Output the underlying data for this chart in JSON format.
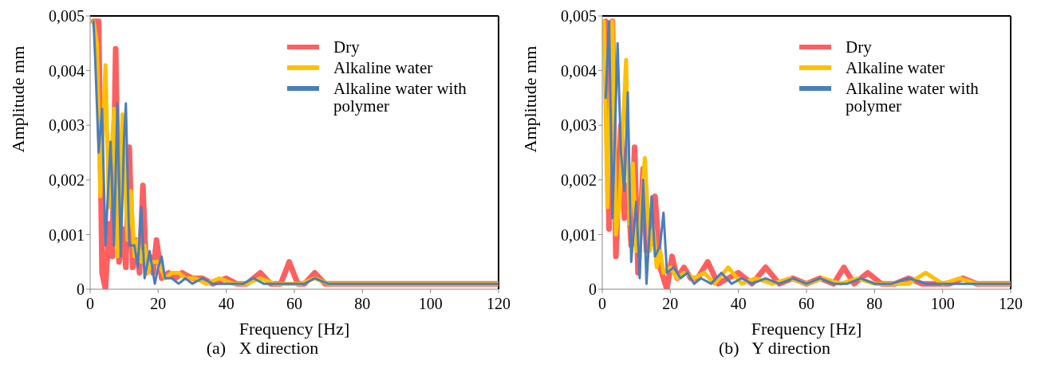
{
  "chart_data": [
    {
      "type": "line",
      "title": "(a)   X direction",
      "xlabel": "Frequency [Hz]",
      "ylabel": "Amplitude mm",
      "xlim": [
        0,
        120
      ],
      "xticks": [
        0,
        20,
        40,
        60,
        80,
        100,
        120
      ],
      "ylim": [
        0,
        0.005
      ],
      "yticks": [
        {
          "value": 0,
          "label": "0"
        },
        {
          "value": 0.001,
          "label": "0,001"
        },
        {
          "value": 0.002,
          "label": "0,002"
        },
        {
          "value": 0.003,
          "label": "0,003"
        },
        {
          "value": 0.004,
          "label": "0,004"
        },
        {
          "value": 0.005,
          "label": "0,005"
        }
      ],
      "grid": false,
      "legend": "top right",
      "marker": "none",
      "line_style": "solid",
      "series": [
        {
          "name": "Dry",
          "color": "#ff5f5f",
          "x": [
            1,
            2.5,
            3.5,
            4.5,
            5.5,
            6.5,
            7.5,
            8.5,
            9.5,
            10.5,
            11.5,
            12.5,
            13.5,
            14.5,
            15.5,
            16.5,
            17.5,
            18.5,
            19.5,
            21,
            23,
            25,
            27,
            30,
            33,
            36,
            40,
            43,
            46,
            50,
            53,
            56,
            58.5,
            61,
            63,
            66,
            69,
            72,
            76,
            80,
            84,
            88,
            90,
            94,
            98,
            100,
            104,
            108,
            112,
            116,
            120
          ],
          "values": [
            0.0049,
            0.0049,
            0.0003,
            0,
            0.0012,
            0.0006,
            0.0044,
            0.0005,
            0.0011,
            0.0004,
            0.0026,
            0.0004,
            0.0009,
            0.0003,
            0.0019,
            0.0003,
            0.0006,
            0.0003,
            0.0009,
            0.0002,
            0.0003,
            0.0002,
            0.0003,
            0.0002,
            0.0002,
            0.0001,
            0.0002,
            0.0001,
            0.0001,
            0.0003,
            0.0001,
            0.0001,
            0.0005,
            0.0001,
            0.0001,
            0.0003,
            0.0001,
            0.0001,
            0.0001,
            0.0001,
            0.0001,
            0.0001,
            0.0001,
            0.0001,
            0.0001,
            0.0001,
            0.0001,
            0.0001,
            0.0001,
            0.0001,
            0.0001
          ]
        },
        {
          "name": "Alkaline water",
          "color": "#ffc000",
          "x": [
            1,
            2,
            3,
            4.5,
            5.5,
            7,
            8,
            9.5,
            11,
            12,
            13,
            14,
            15,
            16,
            17,
            18,
            20,
            22,
            24,
            26,
            28,
            31,
            34,
            38,
            42,
            46,
            50,
            54,
            58,
            62,
            66,
            70,
            75,
            80,
            85,
            90,
            95,
            100,
            105,
            110,
            115,
            120
          ],
          "values": [
            0.0049,
            0.0045,
            0.0017,
            0.0041,
            0.0015,
            0.0033,
            0.0006,
            0.0032,
            0.0009,
            0.0018,
            0.0006,
            0.0009,
            0.0005,
            0.0008,
            0.0003,
            0.0005,
            0.0005,
            0.0002,
            0.0003,
            0.0003,
            0.0002,
            0.0002,
            0.0001,
            0.0002,
            0.0001,
            0.0001,
            0.0002,
            0.0001,
            0.0001,
            0.0001,
            0.0002,
            0.0001,
            0.0001,
            0.0001,
            0.0001,
            0.0001,
            0.0001,
            0.0001,
            0.0001,
            0.0001,
            0.0001,
            0.0001
          ]
        },
        {
          "name": "Alkaline water with polymer",
          "color": "#4a7ebb",
          "x": [
            1,
            1.5,
            2.5,
            3.5,
            4.5,
            5.2,
            6,
            7,
            8,
            9,
            10,
            10.5,
            11.5,
            13,
            14,
            15,
            16,
            17.5,
            19,
            20,
            21,
            22,
            24,
            26,
            28,
            30,
            33,
            36,
            39,
            42,
            45,
            48,
            51,
            54,
            57,
            60,
            63,
            66,
            70,
            75,
            80,
            85,
            90,
            95,
            100,
            105,
            110,
            115,
            120
          ],
          "values": [
            0.0049,
            0.0042,
            0.0025,
            0.0033,
            0.0008,
            0.0017,
            0.0027,
            0.0008,
            0.0034,
            0.0006,
            0.0028,
            0.0034,
            0.0008,
            0.0008,
            0.0004,
            0.0015,
            0.0002,
            0.0007,
            0.0001,
            0.0004,
            0.0006,
            0.0002,
            0.0002,
            0.0001,
            0.0002,
            0.0001,
            0.0002,
            0.0001,
            0.0001,
            0.0001,
            0.0001,
            0.0002,
            0.0001,
            0.0001,
            0.0001,
            0.0001,
            0.0001,
            0.0002,
            0.0001,
            0.0001,
            0.0001,
            0.0001,
            0.0001,
            0.0001,
            0.0001,
            0.0001,
            0.0001,
            0.0001,
            0.0001
          ]
        }
      ]
    },
    {
      "type": "line",
      "title": "(b)   Y direction",
      "xlabel": "Frequency [Hz]",
      "ylabel": "Amplitude mm",
      "xlim": [
        0,
        120
      ],
      "xticks": [
        0,
        20,
        40,
        60,
        80,
        100,
        120
      ],
      "ylim": [
        0,
        0.005
      ],
      "yticks": [
        {
          "value": 0,
          "label": "0"
        },
        {
          "value": 0.001,
          "label": "0,001"
        },
        {
          "value": 0.002,
          "label": "0,002"
        },
        {
          "value": 0.003,
          "label": "0,003"
        },
        {
          "value": 0.004,
          "label": "0,004"
        },
        {
          "value": 0.005,
          "label": "0,005"
        }
      ],
      "grid": false,
      "legend": "top right",
      "marker": "none",
      "line_style": "solid",
      "series": [
        {
          "name": "Dry",
          "color": "#ff5f5f",
          "x": [
            1,
            2,
            3,
            4,
            5.5,
            6.5,
            7.5,
            8.5,
            9.5,
            10.5,
            12,
            13,
            14,
            15.5,
            17,
            19,
            20.5,
            22,
            24,
            26,
            28,
            31,
            34,
            37,
            40,
            44,
            48,
            52,
            56,
            60,
            64,
            68,
            71,
            74,
            78,
            82,
            86,
            90,
            94,
            98,
            102,
            106,
            110,
            115,
            120
          ],
          "values": [
            0.0049,
            0.0011,
            0.0049,
            0.0006,
            0.003,
            0.0013,
            0.0019,
            0.0008,
            0.0026,
            0.0003,
            0.0022,
            0.0007,
            0.0012,
            0.0017,
            0.0004,
            0,
            0.0006,
            0.0002,
            0.0004,
            0.0002,
            0.0002,
            0.0005,
            0.0001,
            0.0002,
            0.0003,
            0.0001,
            0.0004,
            0.0001,
            0.0002,
            0.0001,
            0.0002,
            0.0001,
            0.0004,
            0.0001,
            0.0003,
            0.0001,
            0.0001,
            0.0002,
            0.0001,
            0.0001,
            0.0001,
            0.0002,
            0.0001,
            0.0001,
            0.0001
          ]
        },
        {
          "name": "Alkaline water",
          "color": "#ffc000",
          "x": [
            0.5,
            1.5,
            3,
            4,
            5,
            7,
            8,
            9,
            10,
            11,
            12.5,
            14,
            15,
            16,
            17,
            18,
            20,
            22,
            24,
            27,
            30,
            33,
            37,
            41,
            45,
            50,
            55,
            60,
            65,
            70,
            75,
            80,
            85,
            90,
            95,
            100,
            105,
            110,
            115,
            120
          ],
          "values": [
            0.0049,
            0.0015,
            0.0049,
            0.001,
            0.0015,
            0.0042,
            0.0012,
            0.0023,
            0.0007,
            0.001,
            0.0024,
            0.0007,
            0.0011,
            0.0004,
            0.0007,
            0.0003,
            0.0004,
            0.0002,
            0.0003,
            0.0002,
            0.0003,
            0.0001,
            0.0004,
            0.0001,
            0.0002,
            0.0001,
            0.0002,
            0.0001,
            0.0002,
            0.0001,
            0.0002,
            0.0001,
            0.0001,
            0.0001,
            0.0003,
            0.0001,
            0.0002,
            0.0001,
            0.0001,
            0.0001
          ]
        },
        {
          "name": "Alkaline water with polymer",
          "color": "#4a7ebb",
          "x": [
            1,
            2,
            3,
            4.5,
            5.5,
            6.5,
            7.5,
            8.5,
            10,
            11,
            12,
            13,
            14.5,
            15.5,
            17,
            18,
            19,
            21,
            23,
            25,
            27,
            29,
            32,
            35,
            38,
            41,
            44,
            48,
            52,
            56,
            60,
            64,
            68,
            72,
            76,
            80,
            85,
            90,
            95,
            100,
            105,
            110,
            115,
            120
          ],
          "values": [
            0.0035,
            0.0049,
            0.0013,
            0.0045,
            0.0025,
            0.0018,
            0.0036,
            0.0005,
            0.0016,
            0.0002,
            0.002,
            0.0001,
            0.0017,
            0.0006,
            0.0008,
            0.0014,
            0.0003,
            0.0004,
            0.0002,
            0.0003,
            0.0001,
            0.0002,
            0.0001,
            0.0003,
            0.0001,
            0.0002,
            0.0001,
            0.0002,
            0.0001,
            0.0002,
            0.0001,
            0.0002,
            0.0001,
            0.0001,
            0.0002,
            0.0001,
            0.0001,
            0.0002,
            0.0001,
            0.0001,
            0.0001,
            0.0001,
            0.0001,
            0.0001
          ]
        }
      ]
    }
  ]
}
